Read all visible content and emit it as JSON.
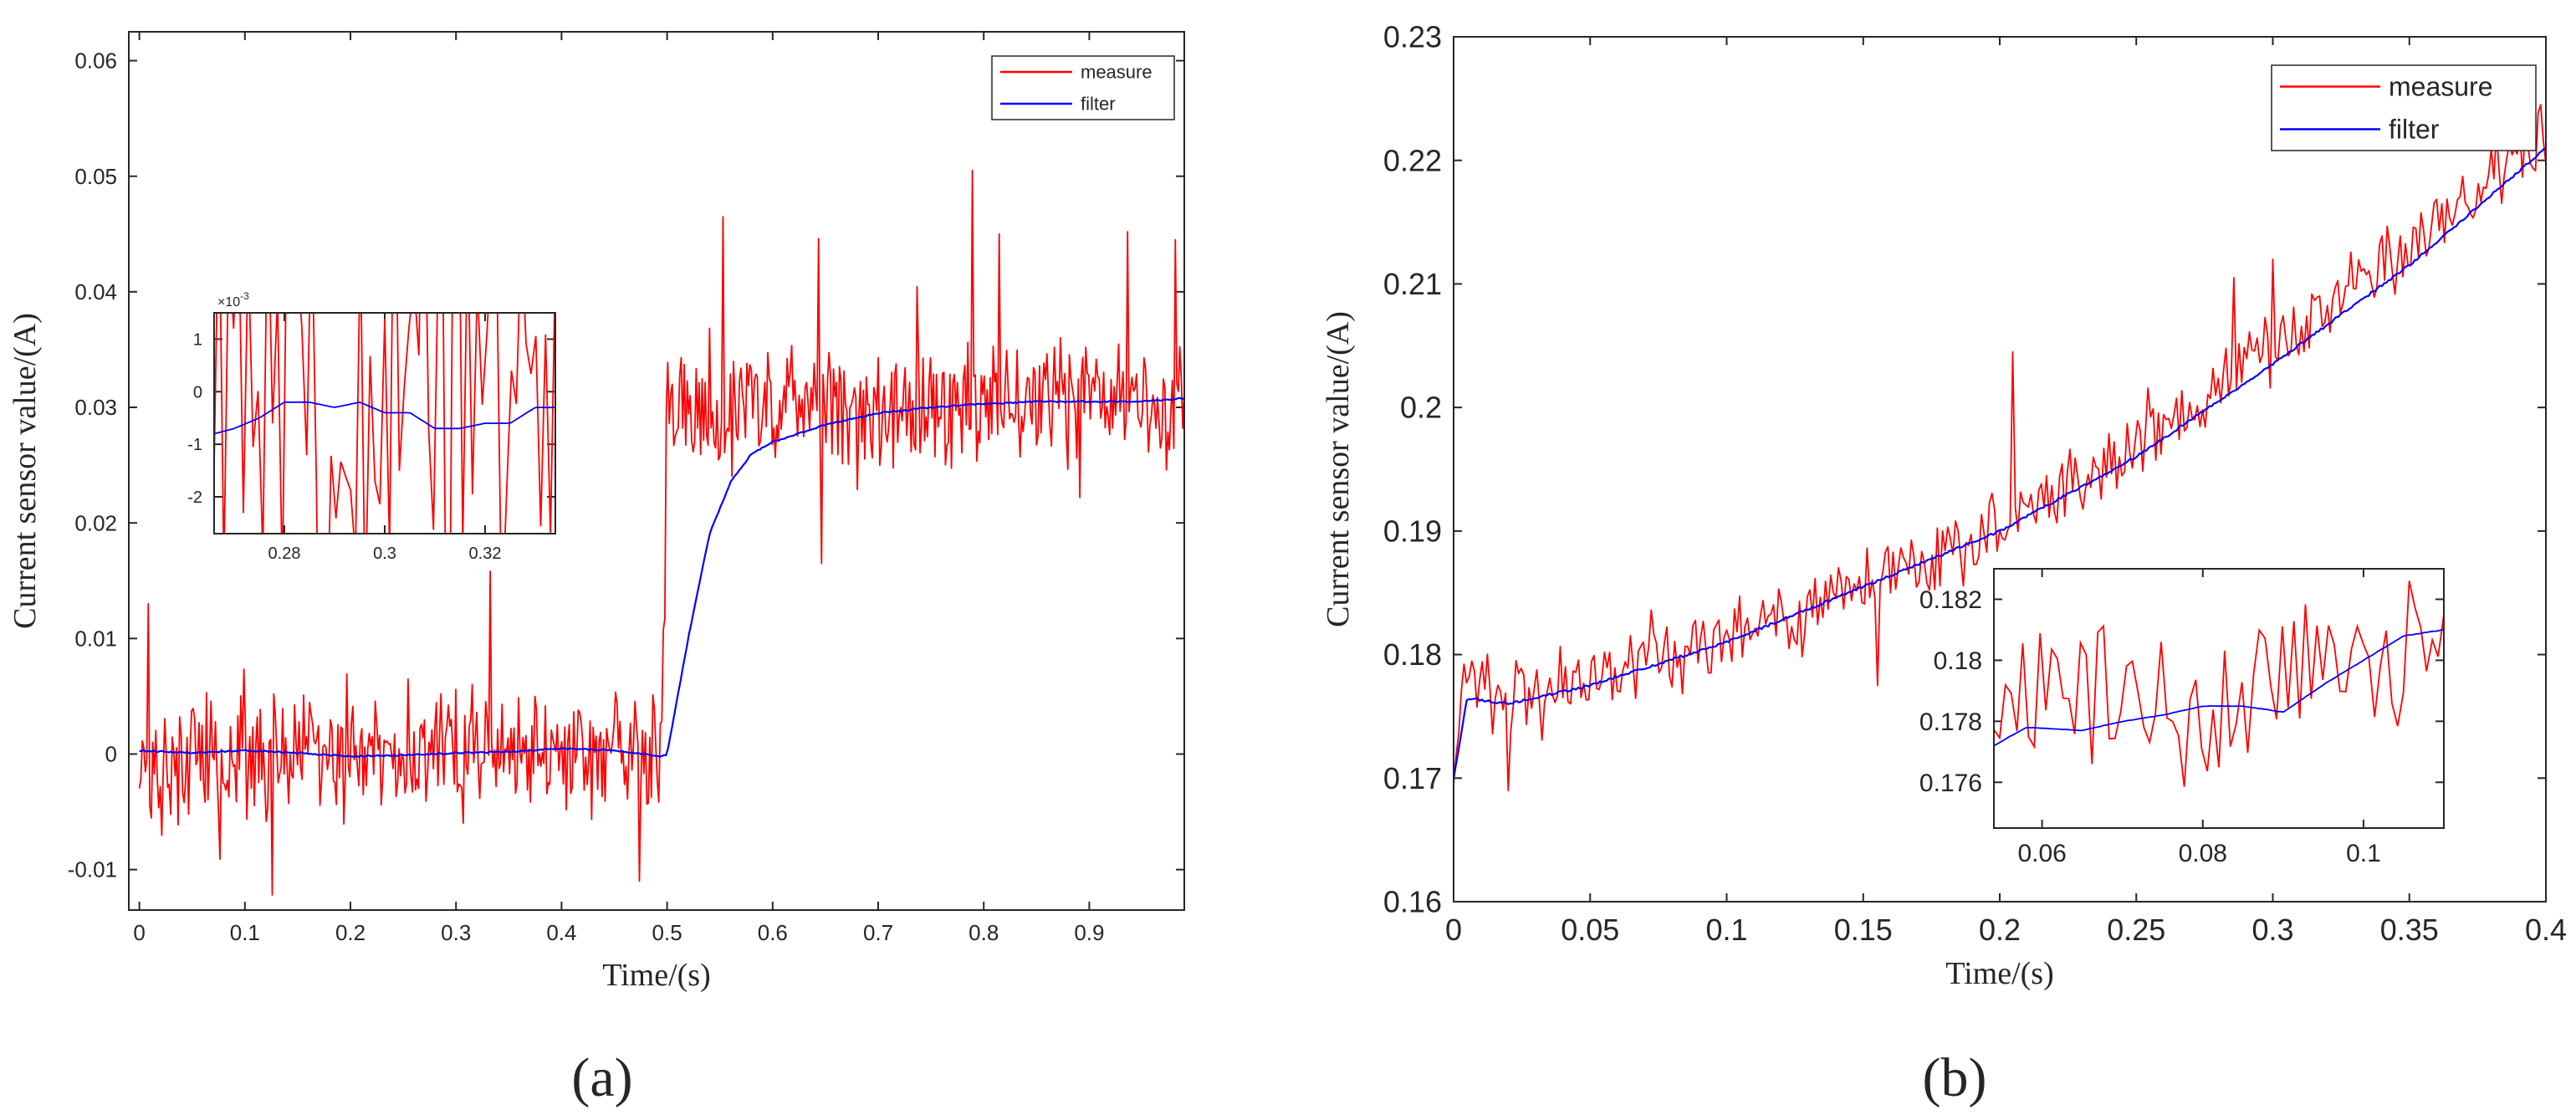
{
  "colors": {
    "measure": "#ff0000",
    "filter": "#0000ff",
    "axis": "#262626",
    "panel_bg": "#ffffff"
  },
  "chart_data": [
    {
      "panel_label": "(a)",
      "type": "line",
      "title": "",
      "xlabel": "Time/(s)",
      "ylabel": "Current sensor value/(A)",
      "xlim": [
        -0.01,
        0.99
      ],
      "ylim": [
        -0.0135,
        0.0625
      ],
      "x_ticks": [
        0,
        0.1,
        0.2,
        0.3,
        0.4,
        0.5,
        0.6,
        0.7,
        0.8,
        0.9
      ],
      "x_tick_labels": [
        "0",
        "0.1",
        "0.2",
        "0.3",
        "0.4",
        "0.5",
        "0.6",
        "0.7",
        "0.8",
        "0.9"
      ],
      "y_ticks": [
        -0.01,
        0,
        0.01,
        0.02,
        0.03,
        0.04,
        0.05,
        0.06
      ],
      "y_tick_labels": [
        "-0.01",
        "0",
        "0.01",
        "0.02",
        "0.03",
        "0.04",
        "0.05",
        "0.06"
      ],
      "legend": {
        "position": "top-right",
        "entries": [
          "measure",
          "filter"
        ]
      },
      "series": [
        {
          "name": "measure",
          "x": [
            0,
            0.05,
            0.1,
            0.15,
            0.2,
            0.25,
            0.3,
            0.35,
            0.4,
            0.45,
            0.495,
            0.5,
            0.55,
            0.6,
            0.65,
            0.7,
            0.75,
            0.8,
            0.85,
            0.9,
            0.95,
            0.99
          ],
          "values": [
            0,
            0,
            0,
            0,
            0,
            0,
            0,
            0,
            0,
            0,
            0,
            0.03,
            0.03,
            0.03,
            0.03,
            0.03,
            0.03,
            0.03,
            0.03,
            0.03,
            0.03,
            0.03
          ],
          "noise": 0.0045,
          "highlights": [
            [
              0.009,
              0.013
            ],
            [
              0.126,
              -0.0122
            ],
            [
              0.333,
              0.0158
            ],
            [
              0.474,
              -0.011
            ],
            [
              0.553,
              0.0465
            ],
            [
              0.643,
              0.0446
            ],
            [
              0.789,
              0.0505
            ],
            [
              0.815,
              0.045
            ],
            [
              0.936,
              0.0452
            ],
            [
              0.981,
              0.0445
            ],
            [
              0.647,
              0.0165
            ]
          ]
        },
        {
          "name": "filter",
          "x": [
            0,
            0.05,
            0.1,
            0.15,
            0.2,
            0.25,
            0.3,
            0.35,
            0.4,
            0.45,
            0.495,
            0.5,
            0.52,
            0.54,
            0.56,
            0.58,
            0.6,
            0.65,
            0.7,
            0.75,
            0.8,
            0.85,
            0.9,
            0.95,
            0.99
          ],
          "values": [
            0.0003,
            0.0001,
            0.0003,
            0.0001,
            -0.0002,
            -0.0001,
            0.0001,
            0.0002,
            0.0005,
            0.0003,
            -0.0002,
            0.0,
            0.01,
            0.019,
            0.0235,
            0.026,
            0.027,
            0.0285,
            0.0295,
            0.03,
            0.0303,
            0.0305,
            0.0305,
            0.0305,
            0.0308
          ]
        }
      ],
      "inset": {
        "xlim": [
          0.266,
          0.334
        ],
        "ylim": [
          -0.0027,
          0.0015
        ],
        "x_ticks": [
          0.28,
          0.3,
          0.32
        ],
        "x_tick_labels": [
          "0.28",
          "0.3",
          "0.32"
        ],
        "y_ticks": [
          -0.002,
          -0.001,
          0,
          0.001
        ],
        "y_tick_labels": [
          "-2",
          "-1",
          "0",
          "1"
        ],
        "y_multiplier": "×10",
        "y_multiplier_exp": "-3",
        "series": [
          {
            "name": "measure",
            "x": [
              0.266,
              0.334
            ],
            "values": [
              0,
              0
            ],
            "noise": 0.0045
          },
          {
            "name": "filter",
            "x": [
              0.266,
              0.27,
              0.275,
              0.28,
              0.285,
              0.29,
              0.295,
              0.3,
              0.305,
              0.31,
              0.315,
              0.32,
              0.325,
              0.33,
              0.334
            ],
            "values": [
              -0.0008,
              -0.0007,
              -0.0005,
              -0.0002,
              -0.0002,
              -0.0003,
              -0.0002,
              -0.0004,
              -0.0004,
              -0.0007,
              -0.0007,
              -0.0006,
              -0.0006,
              -0.0003,
              -0.0003
            ]
          }
        ]
      }
    },
    {
      "panel_label": "(b)",
      "type": "line",
      "title": "",
      "xlabel": "Time/(s)",
      "ylabel": "Current sensor value/(A)",
      "xlim": [
        0,
        0.4
      ],
      "ylim": [
        0.16,
        0.23
      ],
      "x_ticks": [
        0,
        0.05,
        0.1,
        0.15,
        0.2,
        0.25,
        0.3,
        0.35,
        0.4
      ],
      "x_tick_labels": [
        "0",
        "0.05",
        "0.1",
        "0.15",
        "0.2",
        "0.25",
        "0.3",
        "0.35",
        "0.4"
      ],
      "y_ticks": [
        0.16,
        0.17,
        0.18,
        0.19,
        0.2,
        0.21,
        0.22,
        0.23
      ],
      "y_tick_labels": [
        "0.16",
        "0.17",
        "0.18",
        "0.19",
        "0.2",
        "0.21",
        "0.22",
        "0.23"
      ],
      "legend": {
        "position": "top-right",
        "entries": [
          "measure",
          "filter"
        ]
      },
      "series": [
        {
          "name": "measure",
          "x": [
            0,
            0.003,
            0.01,
            0.05,
            0.1,
            0.15,
            0.2,
            0.25,
            0.3,
            0.35,
            0.4
          ],
          "values": [
            0.171,
            0.178,
            0.1765,
            0.178,
            0.181,
            0.186,
            0.19,
            0.197,
            0.205,
            0.213,
            0.222
          ],
          "noise": 0.0025,
          "highlights": [
            [
              0.02,
              0.169
            ],
            [
              0.155,
              0.1775
            ],
            [
              0.205,
              0.2045
            ],
            [
              0.286,
              0.2105
            ],
            [
              0.3,
              0.212
            ],
            [
              0.398,
              0.2245
            ]
          ]
        },
        {
          "name": "filter",
          "x": [
            0,
            0.005,
            0.02,
            0.05,
            0.1,
            0.15,
            0.2,
            0.25,
            0.3,
            0.35,
            0.4
          ],
          "values": [
            0.17,
            0.1765,
            0.176,
            0.1775,
            0.181,
            0.1855,
            0.19,
            0.196,
            0.2035,
            0.2115,
            0.221
          ]
        }
      ],
      "inset": {
        "xlim": [
          0.054,
          0.11
        ],
        "ylim": [
          0.1745,
          0.183
        ],
        "x_ticks": [
          0.06,
          0.08,
          0.1
        ],
        "x_tick_labels": [
          "0.06",
          "0.08",
          "0.1"
        ],
        "y_ticks": [
          0.176,
          0.178,
          0.18,
          0.182
        ],
        "y_tick_labels": [
          "0.176",
          "0.178",
          "0.18",
          "0.182"
        ],
        "series": [
          {
            "name": "measure",
            "x": [
              0.054,
              0.08,
              0.11
            ],
            "values": [
              0.1785,
              0.1785,
              0.1805
            ],
            "noise": 0.0022
          },
          {
            "name": "filter",
            "x": [
              0.054,
              0.058,
              0.065,
              0.07,
              0.075,
              0.08,
              0.085,
              0.09,
              0.095,
              0.1,
              0.105,
              0.11
            ],
            "values": [
              0.1772,
              0.1778,
              0.1777,
              0.178,
              0.1782,
              0.1785,
              0.1785,
              0.1783,
              0.1792,
              0.18,
              0.1808,
              0.181
            ]
          }
        ]
      }
    }
  ]
}
